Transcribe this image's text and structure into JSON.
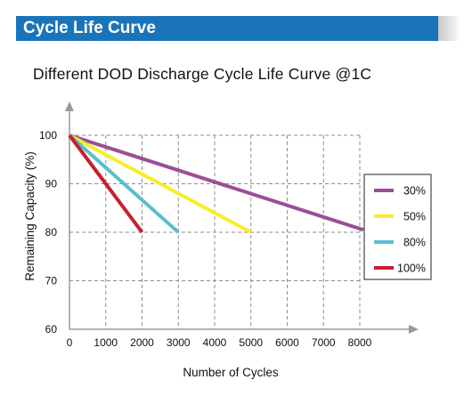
{
  "header": {
    "title": "Cycle Life Curve"
  },
  "chart_data": {
    "type": "line",
    "title": "Different DOD Discharge Cycle Life Curve @1C",
    "xlabel": "Number of Cycles",
    "ylabel": "Remaining Capacity (%)",
    "xlim": [
      0,
      8000
    ],
    "ylim": [
      60,
      100
    ],
    "x_ticks": [
      "0",
      "1000",
      "2000",
      "3000",
      "4000",
      "5000",
      "6000",
      "7000",
      "8000"
    ],
    "y_ticks": [
      "60",
      "70",
      "80",
      "90",
      "100"
    ],
    "grid": true,
    "legend_position": "right",
    "series": [
      {
        "name": "30%",
        "color": "#9b4e96",
        "x": [
          0,
          8100
        ],
        "y": [
          100,
          80.5
        ]
      },
      {
        "name": "50%",
        "color": "#f7ee2a",
        "x": [
          0,
          5000
        ],
        "y": [
          100,
          80
        ]
      },
      {
        "name": "80%",
        "color": "#5bbdd0",
        "x": [
          0,
          3000
        ],
        "y": [
          100,
          80
        ]
      },
      {
        "name": "100%",
        "color": "#c8202e",
        "x": [
          0,
          2000
        ],
        "y": [
          100,
          80
        ]
      }
    ]
  }
}
